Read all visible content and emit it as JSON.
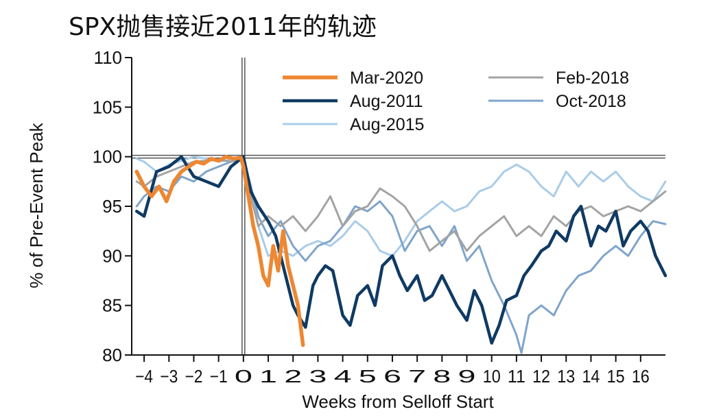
{
  "title": "SPX抛售接近2011年的轨迹",
  "chart_data": {
    "type": "line",
    "xlabel": "Weeks from Selloff Start",
    "ylabel": "% of Pre-Event Peak",
    "ylim": [
      80,
      110
    ],
    "xlim": [
      -4.5,
      17
    ],
    "yticks": [
      80,
      85,
      90,
      95,
      100,
      105,
      110
    ],
    "xticks": [
      -4,
      -3,
      -2,
      -1,
      0,
      1,
      2,
      3,
      4,
      5,
      6,
      7,
      8,
      9,
      10,
      11,
      12,
      13,
      14,
      15,
      16
    ],
    "xtick_labels": [
      "−4",
      "−3",
      "−2",
      "−1",
      "0",
      "1",
      "2",
      "3",
      "4",
      "5",
      "6",
      "7",
      "8",
      "9",
      "10",
      "11",
      "12",
      "13",
      "14",
      "15",
      "16"
    ],
    "legend_position": "top",
    "series": [
      {
        "name": "Aug-2015",
        "color": "#a9cce8",
        "width": 3,
        "x": [
          -4.3,
          -4,
          -3.5,
          -3,
          -2.5,
          -2,
          -1.5,
          -1,
          -0.5,
          0,
          0.3,
          0.6,
          1,
          1.5,
          2,
          2.5,
          3,
          3.5,
          4,
          4.5,
          5,
          5.5,
          6,
          6.5,
          7,
          7.5,
          8,
          8.5,
          9,
          9.5,
          10,
          10.5,
          11,
          11.5,
          12,
          12.5,
          13,
          13.5,
          14,
          14.5,
          15,
          15.5,
          16,
          16.5,
          17
        ],
        "y": [
          99.8,
          99.5,
          98.5,
          99.2,
          99.6,
          100,
          99.8,
          99.5,
          99.7,
          99.8,
          97,
          93,
          90,
          90.5,
          90,
          91,
          91.5,
          91,
          92,
          93.5,
          92.5,
          90.5,
          90,
          91.5,
          93.5,
          94.5,
          95.5,
          94.5,
          95,
          96.5,
          97,
          98.5,
          99.2,
          98.5,
          97,
          96,
          98.5,
          97,
          98.5,
          97.5,
          98.5,
          97,
          96,
          95.5,
          97.5
        ]
      },
      {
        "name": "Oct-2018",
        "color": "#7fa4ca",
        "width": 3,
        "x": [
          -4.3,
          -4,
          -3.5,
          -3,
          -2.5,
          -2,
          -1.5,
          -1,
          -0.5,
          0,
          0.3,
          0.6,
          1,
          1.5,
          2,
          2.5,
          3,
          3.5,
          4,
          4.5,
          5,
          5.5,
          6,
          6.5,
          7,
          7.5,
          8,
          8.5,
          9,
          9.5,
          10,
          10.5,
          11,
          11.2,
          11.5,
          12,
          12.5,
          13,
          13.5,
          14,
          14.5,
          15,
          15.5,
          16,
          16.5,
          17
        ],
        "y": [
          95,
          96,
          97,
          96.5,
          98,
          97.5,
          98.5,
          99,
          99.5,
          99.8,
          97,
          94,
          92,
          93.5,
          91,
          89.5,
          91,
          91.5,
          93,
          95,
          94.5,
          95.5,
          94,
          90.5,
          92.5,
          93,
          91,
          93,
          89.5,
          91,
          87.5,
          85,
          82,
          80.2,
          84,
          85,
          84,
          86.5,
          88,
          88.5,
          90,
          91,
          90,
          92,
          93.5,
          93.2
        ]
      },
      {
        "name": "Feb-2018",
        "color": "#a3a3a3",
        "width": 3,
        "x": [
          -4.3,
          -4,
          -3.5,
          -3,
          -2.5,
          -2,
          -1.5,
          -1,
          -0.5,
          0,
          0.3,
          0.6,
          1,
          1.5,
          2,
          2.5,
          3,
          3.5,
          4,
          4.5,
          5,
          5.5,
          6,
          6.5,
          7,
          7.5,
          8,
          8.5,
          9,
          9.5,
          10,
          10.5,
          11,
          11.5,
          12,
          12.5,
          13,
          13.5,
          14,
          14.5,
          15,
          15.5,
          16,
          16.5,
          17
        ],
        "y": [
          97.5,
          97,
          98,
          98.5,
          99,
          99.5,
          99.6,
          99.7,
          99.5,
          99.8,
          96,
          93,
          94,
          93,
          94,
          92.5,
          94,
          96,
          93,
          94.5,
          95,
          96.8,
          96,
          95,
          93,
          90.5,
          91.5,
          92.5,
          90.5,
          92,
          93,
          94,
          92,
          93,
          92,
          94,
          93,
          94.5,
          95,
          94,
          94.5,
          95,
          94.5,
          95.5,
          96.5
        ]
      },
      {
        "name": "Aug-2011",
        "color": "#0f3a63",
        "width": 4.5,
        "x": [
          -4.3,
          -4,
          -3.5,
          -3,
          -2.5,
          -2,
          -1.5,
          -1,
          -0.5,
          0,
          0.3,
          0.6,
          1,
          1.3,
          1.6,
          2,
          2.2,
          2.5,
          2.8,
          3,
          3.3,
          3.6,
          4,
          4.3,
          4.6,
          5,
          5.3,
          5.6,
          6,
          6.3,
          6.6,
          7,
          7.3,
          7.6,
          8,
          8.3,
          8.6,
          9,
          9.3,
          9.6,
          10,
          10.3,
          10.6,
          11,
          11.3,
          11.6,
          12,
          12.3,
          12.6,
          13,
          13.3,
          13.6,
          14,
          14.3,
          14.6,
          15,
          15.3,
          15.6,
          16,
          16.3,
          16.6,
          17
        ],
        "y": [
          94.5,
          94,
          98.5,
          99,
          100,
          98,
          97.5,
          97,
          99,
          100,
          96.5,
          95,
          93.5,
          92,
          89,
          85,
          84,
          82.8,
          87,
          88,
          89,
          88.5,
          84,
          83,
          86,
          87,
          85,
          89,
          90,
          88,
          86.5,
          88,
          85.5,
          86,
          88,
          86.5,
          85,
          83.5,
          86.5,
          85,
          81.2,
          83,
          85.5,
          86,
          88,
          89,
          90.5,
          91,
          92.5,
          91.5,
          94,
          95,
          91,
          93,
          92.5,
          94.5,
          91,
          92.5,
          93.5,
          92.5,
          90,
          88
        ]
      },
      {
        "name": "Mar-2020",
        "color": "#ee8731",
        "width": 5.5,
        "x": [
          -4.3,
          -4,
          -3.7,
          -3.4,
          -3.1,
          -2.8,
          -2.5,
          -2.2,
          -1.9,
          -1.6,
          -1.3,
          -1,
          -0.7,
          -0.4,
          -0.1,
          0,
          0.2,
          0.4,
          0.6,
          0.8,
          1,
          1.2,
          1.4,
          1.6,
          1.8,
          2,
          2.2,
          2.4
        ],
        "y": [
          98.5,
          97,
          96,
          97,
          95.5,
          97.5,
          98.5,
          99,
          99.5,
          99.3,
          99.8,
          99.6,
          100,
          99.8,
          99.9,
          99,
          96,
          93,
          91,
          88,
          87,
          91,
          88.5,
          92.5,
          89,
          87,
          85,
          81
        ]
      }
    ]
  },
  "colors": {
    "axis": "#111111",
    "refline": "#555555"
  }
}
